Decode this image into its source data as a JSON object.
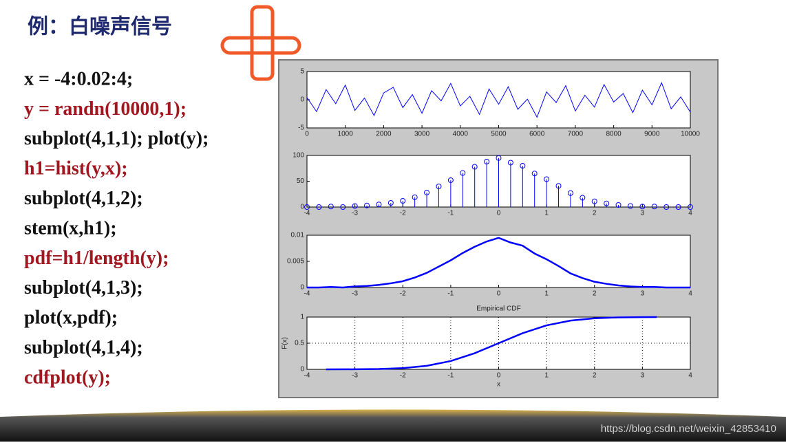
{
  "header": {
    "title": "例：白噪声信号"
  },
  "code": [
    {
      "text": "x = -4:0.02:4;",
      "color": "#111111"
    },
    {
      "text": "y = randn(10000,1);",
      "color": "#a0171f"
    },
    {
      "text": "subplot(4,1,1); plot(y);",
      "color": "#111111"
    },
    {
      "text": "h1=hist(y,x);",
      "color": "#a0171f"
    },
    {
      "text": "subplot(4,1,2);",
      "color": "#111111"
    },
    {
      "text": "stem(x,h1);",
      "color": "#111111"
    },
    {
      "text": "pdf=h1/length(y);",
      "color": "#a0171f"
    },
    {
      "text": "subplot(4,1,3);",
      "color": "#111111"
    },
    {
      "text": "plot(x,pdf);",
      "color": "#111111"
    },
    {
      "text": "subplot(4,1,4);",
      "color": "#111111"
    },
    {
      "text": "cdfplot(y);",
      "color": "#a0171f"
    }
  ],
  "chart_data": [
    {
      "type": "line",
      "color": "#0000ff",
      "xlim": [
        0,
        10000
      ],
      "ylim": [
        -5,
        5
      ],
      "xticks": [
        0,
        1000,
        2000,
        3000,
        4000,
        5000,
        6000,
        7000,
        8000,
        9000,
        10000
      ],
      "yticks": [
        -5,
        0,
        5
      ],
      "x": [
        0,
        250,
        500,
        750,
        1000,
        1250,
        1500,
        1750,
        2000,
        2250,
        2500,
        2750,
        3000,
        3250,
        3500,
        3750,
        4000,
        4250,
        4500,
        4750,
        5000,
        5250,
        5500,
        5750,
        6000,
        6250,
        6500,
        6750,
        7000,
        7250,
        7500,
        7750,
        8000,
        8250,
        8500,
        8750,
        9000,
        9250,
        9500,
        9750,
        10000
      ],
      "values": [
        0.4,
        -2.1,
        1.8,
        -0.7,
        2.6,
        -1.9,
        0.3,
        -2.8,
        1.2,
        2.2,
        -1.4,
        0.9,
        -2.4,
        1.6,
        -0.2,
        2.9,
        -1.1,
        0.6,
        -2.6,
        1.9,
        -0.8,
        2.3,
        -1.7,
        0.1,
        -3.1,
        1.4,
        -0.5,
        2.5,
        -2.0,
        0.8,
        -1.3,
        2.7,
        -0.4,
        1.1,
        -2.3,
        1.7,
        -0.9,
        3.0,
        -1.6,
        0.5,
        -2.2
      ]
    },
    {
      "type": "stem",
      "color": "#0000ff",
      "xlim": [
        -4,
        4
      ],
      "ylim": [
        0,
        100
      ],
      "xticks": [
        -4,
        -3,
        -2,
        -1,
        0,
        1,
        2,
        3,
        4
      ],
      "yticks": [
        0,
        50,
        100
      ],
      "x": [
        -4,
        -3.75,
        -3.5,
        -3.25,
        -3,
        -2.75,
        -2.5,
        -2.25,
        -2,
        -1.75,
        -1.5,
        -1.25,
        -1,
        -0.75,
        -0.5,
        -0.25,
        0,
        0.25,
        0.5,
        0.75,
        1,
        1.25,
        1.5,
        1.75,
        2,
        2.25,
        2.5,
        2.75,
        3,
        3.25,
        3.5,
        3.75,
        4
      ],
      "values": [
        0,
        0,
        1,
        0,
        2,
        3,
        5,
        8,
        12,
        19,
        28,
        40,
        52,
        66,
        78,
        88,
        95,
        86,
        80,
        65,
        54,
        41,
        27,
        18,
        11,
        7,
        4,
        2,
        1,
        1,
        0,
        0,
        0
      ]
    },
    {
      "type": "line",
      "color": "#0000ff",
      "xlim": [
        -4,
        4
      ],
      "ylim": [
        0,
        0.01
      ],
      "xticks": [
        -4,
        -3,
        -2,
        -1,
        0,
        1,
        2,
        3,
        4
      ],
      "yticks": [
        0,
        0.005,
        0.01
      ],
      "x": [
        -4,
        -3.75,
        -3.5,
        -3.25,
        -3,
        -2.75,
        -2.5,
        -2.25,
        -2,
        -1.75,
        -1.5,
        -1.25,
        -1,
        -0.75,
        -0.5,
        -0.25,
        0,
        0.25,
        0.5,
        0.75,
        1,
        1.25,
        1.5,
        1.75,
        2,
        2.25,
        2.5,
        2.75,
        3,
        3.25,
        3.5,
        3.75,
        4
      ],
      "values": [
        0,
        0,
        0.0001,
        0,
        0.0002,
        0.0003,
        0.0005,
        0.0008,
        0.0012,
        0.0019,
        0.0028,
        0.004,
        0.0052,
        0.0066,
        0.0078,
        0.0088,
        0.0095,
        0.0086,
        0.008,
        0.0065,
        0.0054,
        0.0041,
        0.0027,
        0.0018,
        0.0011,
        0.0007,
        0.0004,
        0.0002,
        0.0001,
        0.0001,
        0,
        0,
        0
      ]
    },
    {
      "type": "line",
      "color": "#0000ff",
      "title": "Empirical CDF",
      "xlabel": "x",
      "ylabel": "F(x)",
      "grid": true,
      "xlim": [
        -4,
        4
      ],
      "ylim": [
        0,
        1
      ],
      "xticks": [
        -4,
        -3,
        -2,
        -1,
        0,
        1,
        2,
        3,
        4
      ],
      "yticks": [
        0,
        0.5,
        1
      ],
      "x": [
        -3.6,
        -3,
        -2.5,
        -2,
        -1.5,
        -1,
        -0.5,
        0,
        0.5,
        1,
        1.5,
        2,
        2.5,
        3,
        3.3
      ],
      "values": [
        0,
        0.001,
        0.006,
        0.023,
        0.067,
        0.159,
        0.309,
        0.5,
        0.691,
        0.841,
        0.933,
        0.977,
        0.994,
        0.999,
        1
      ]
    }
  ],
  "watermark": "https://blog.csdn.net/weixin_42853410"
}
